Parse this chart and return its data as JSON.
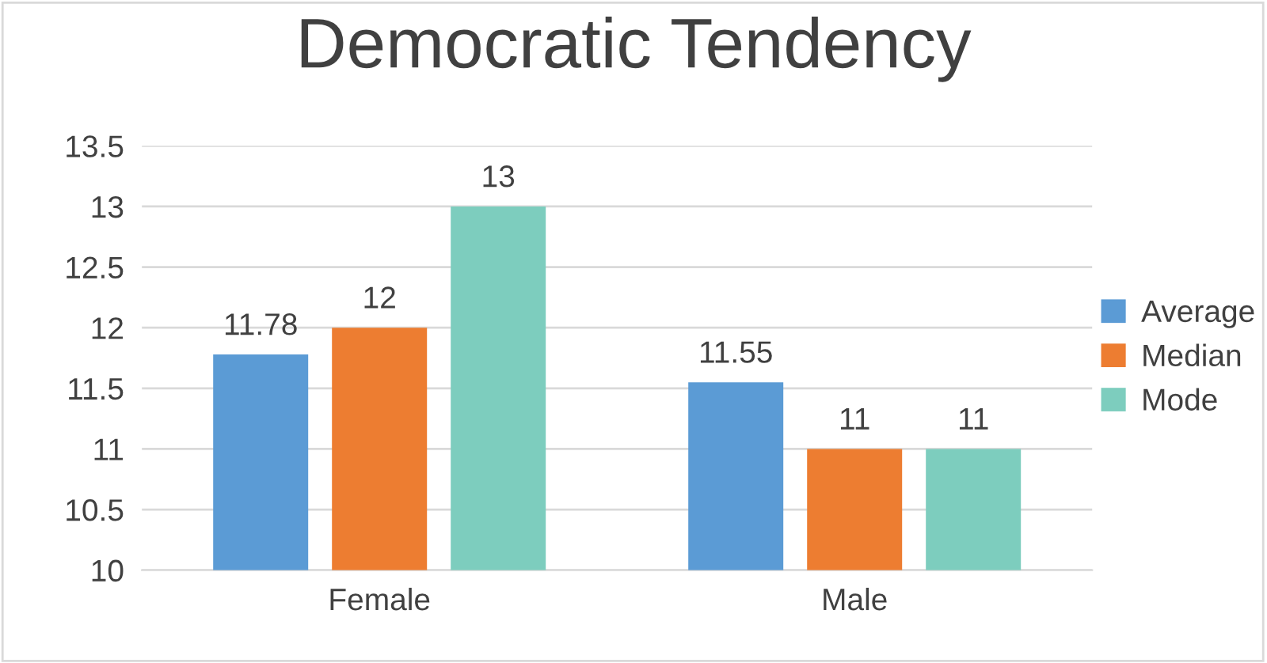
{
  "chart_data": {
    "type": "bar",
    "title": "Democratic Tendency",
    "categories": [
      "Female",
      "Male"
    ],
    "series": [
      {
        "name": "Average",
        "color": "#5b9bd5",
        "values": [
          11.78,
          11.55
        ]
      },
      {
        "name": "Median",
        "color": "#ed7d31",
        "values": [
          12,
          11
        ]
      },
      {
        "name": "Mode",
        "color": "#7dcdbe",
        "values": [
          13,
          11
        ]
      }
    ],
    "ylim": [
      10,
      13.5
    ],
    "yticks": [
      10,
      10.5,
      11,
      11.5,
      12,
      12.5,
      13,
      13.5
    ],
    "grid": "y",
    "legend": "right",
    "data_labels": true
  }
}
